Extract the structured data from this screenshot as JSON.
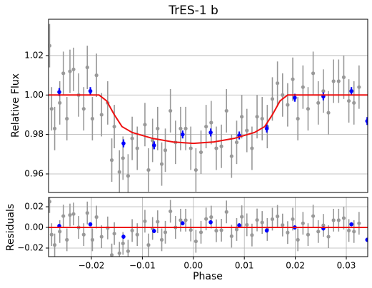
{
  "chart_data": [
    {
      "type": "scatter",
      "title": "TrES-1 b",
      "ylabel": "Relative Flux",
      "xlim": [
        -0.0284,
        0.0342
      ],
      "ylim": [
        0.9506,
        1.0384
      ],
      "yticks": [
        0.96,
        0.98,
        {
          "value": 1.0,
          "label": "1.00"
        },
        1.02
      ],
      "grid": "y",
      "series": [
        {
          "mode": "markers",
          "color": "#999999",
          "error": 0.011,
          "x": [
            -0.0282,
            -0.0278,
            -0.0272,
            -0.0262,
            -0.0255,
            -0.0248,
            -0.0242,
            -0.0235,
            -0.0225,
            -0.0215,
            -0.0208,
            -0.0198,
            -0.019,
            -0.018,
            -0.0168,
            -0.016,
            -0.0155,
            -0.0145,
            -0.0138,
            -0.0128,
            -0.012,
            -0.011,
            -0.0095,
            -0.0088,
            -0.008,
            -0.007,
            -0.0062,
            -0.0055,
            -0.0045,
            -0.0035,
            -0.0025,
            -0.0015,
            -0.0005,
            0.0005,
            0.0015,
            0.0025,
            0.0035,
            0.0045,
            0.0055,
            0.0065,
            0.0075,
            0.0085,
            0.0095,
            0.0105,
            0.0115,
            0.0125,
            0.0135,
            0.0145,
            0.0155,
            0.0165,
            0.0175,
            0.0185,
            0.0195,
            0.0205,
            0.0215,
            0.0225,
            0.0235,
            0.0245,
            0.0255,
            0.0265,
            0.0275,
            0.0285,
            0.0295,
            0.0305,
            0.0315,
            0.0325
          ],
          "values": [
            1.025,
            0.993,
            0.983,
            0.996,
            1.011,
            0.988,
            1.012,
            1.013,
            1.0,
            0.993,
            1.014,
            0.988,
            1.01,
            0.99,
            0.996,
            0.967,
            0.984,
            0.961,
            0.968,
            0.959,
            0.978,
            0.973,
            0.985,
            0.962,
            0.977,
            0.983,
            0.965,
            0.972,
            0.992,
            0.976,
            0.983,
            0.983,
            0.973,
            0.962,
            0.971,
            0.984,
            0.986,
            0.973,
            0.974,
            0.992,
            0.969,
            0.976,
            0.989,
            0.982,
            0.973,
            0.989,
            0.988,
            0.984,
            0.998,
            1.006,
            1.0,
            0.995,
            1.008,
            0.988,
            1.004,
            0.993,
            1.011,
            0.996,
            1.002,
            0.991,
            1.007,
            1.007,
            1.009,
            0.997,
            0.996,
            1.004
          ]
        },
        {
          "mode": "markers",
          "color": "#0000ff",
          "error": 0.002,
          "x": [
            -0.0263,
            -0.0202,
            -0.0137,
            -0.0077,
            -0.0021,
            0.0034,
            0.009,
            0.0144,
            0.0199,
            0.0255,
            0.031,
            0.0341
          ],
          "values": [
            1.0015,
            1.002,
            0.9755,
            0.9745,
            0.98,
            0.981,
            0.9795,
            0.983,
            0.9986,
            0.9993,
            1.002,
            0.9868
          ]
        },
        {
          "mode": "line",
          "color": "#ee1111",
          "x": [
            -0.0284,
            -0.0185,
            -0.017,
            -0.0155,
            -0.014,
            -0.012,
            -0.008,
            -0.004,
            0,
            0.004,
            0.008,
            0.012,
            0.014,
            0.0155,
            0.017,
            0.0185,
            0.0342
          ],
          "values": [
            1.0,
            1.0,
            0.997,
            0.99,
            0.984,
            0.981,
            0.978,
            0.9762,
            0.9755,
            0.9762,
            0.978,
            0.981,
            0.984,
            0.99,
            0.997,
            1.0,
            1.0
          ]
        }
      ]
    },
    {
      "type": "scatter",
      "ylabel": "Residuals",
      "xlabel": "Phase",
      "xlim": [
        -0.0284,
        0.0342
      ],
      "ylim": [
        -0.0283,
        0.029
      ],
      "xticks": [
        {
          "value": -0.02,
          "label": "−0.02"
        },
        {
          "value": -0.01,
          "label": "−0.01"
        },
        {
          "value": 0,
          "label": "0.00"
        },
        0.01,
        0.02,
        0.03
      ],
      "yticks": [
        {
          "value": -0.02,
          "label": "−0.02"
        },
        {
          "value": 0,
          "label": "0.00"
        },
        0.02
      ],
      "grid": "both",
      "series": [
        {
          "mode": "markers",
          "color": "#999999",
          "error": 0.011,
          "x": [
            -0.0282,
            -0.0278,
            -0.0272,
            -0.0262,
            -0.0255,
            -0.0248,
            -0.0242,
            -0.0235,
            -0.0225,
            -0.0215,
            -0.0208,
            -0.0198,
            -0.019,
            -0.018,
            -0.0168,
            -0.016,
            -0.0155,
            -0.0145,
            -0.0138,
            -0.0128,
            -0.012,
            -0.011,
            -0.0095,
            -0.0088,
            -0.008,
            -0.007,
            -0.0062,
            -0.0055,
            -0.0045,
            -0.0035,
            -0.0025,
            -0.0015,
            -0.0005,
            0.0005,
            0.0015,
            0.0025,
            0.0035,
            0.0045,
            0.0055,
            0.0065,
            0.0075,
            0.0085,
            0.0095,
            0.0105,
            0.0115,
            0.0125,
            0.0135,
            0.0145,
            0.0155,
            0.0165,
            0.0175,
            0.0185,
            0.0195,
            0.0205,
            0.0215,
            0.0225,
            0.0235,
            0.0245,
            0.0255,
            0.0265,
            0.0275,
            0.0285,
            0.0295,
            0.0305,
            0.0315,
            0.0325
          ],
          "values": [
            0.025,
            -0.007,
            -0.017,
            -0.004,
            0.011,
            -0.012,
            0.012,
            0.013,
            0.0,
            -0.007,
            0.014,
            -0.012,
            0.01,
            -0.009,
            -0.0005,
            -0.0267,
            -0.006,
            -0.025,
            -0.0155,
            -0.023,
            -0.003,
            -0.007,
            0.006,
            -0.017,
            -0.001,
            0.0055,
            -0.012,
            -0.0047,
            0.0156,
            0.0,
            0.007,
            0.007,
            -0.0025,
            -0.0135,
            -0.0047,
            0.0082,
            0.01,
            -0.0032,
            -0.0027,
            0.015,
            -0.0085,
            -0.002,
            0.0103,
            0.0025,
            -0.0074,
            0.0072,
            0.0048,
            -0.002,
            0.008,
            0.0107,
            0.0023,
            -0.005,
            0.008,
            -0.012,
            0.004,
            -0.007,
            0.011,
            -0.004,
            0.002,
            -0.009,
            0.007,
            0.007,
            0.009,
            -0.003,
            -0.004,
            0.004
          ]
        },
        {
          "mode": "markers",
          "color": "#0000ff",
          "error": 0.002,
          "x": [
            -0.0263,
            -0.0202,
            -0.0137,
            -0.0077,
            -0.0021,
            0.0034,
            0.009,
            0.0144,
            0.0199,
            0.0255,
            0.031,
            0.0341
          ],
          "values": [
            0.0014,
            0.003,
            -0.009,
            -0.0035,
            0.004,
            0.005,
            0.002,
            -0.003,
            0.0,
            -0.001,
            0.003,
            -0.012
          ]
        },
        {
          "mode": "line",
          "color": "#ee1111",
          "x": [
            -0.0284,
            0.0342
          ],
          "values": [
            0,
            0
          ]
        }
      ]
    }
  ]
}
